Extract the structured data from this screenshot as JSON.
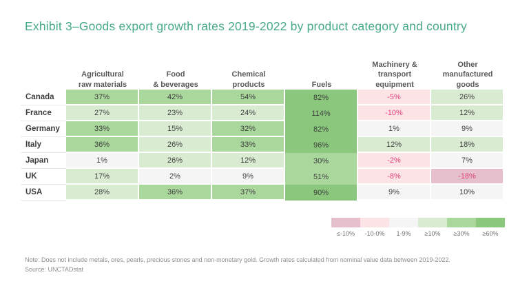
{
  "title": "Exhibit 3–Goods export growth rates 2019-2022 by product category and country",
  "colors": {
    "title": "#46a98b",
    "header_text": "#595959",
    "cell_text": "#3d3d3d",
    "negative_text": "#e0447e",
    "note_text": "#8e8e8e"
  },
  "table": {
    "columns": [
      {
        "key": "agricultural",
        "label": "Agricultural\nraw materials"
      },
      {
        "key": "food",
        "label": "Food\n& beverages"
      },
      {
        "key": "chemical",
        "label": "Chemical\nproducts"
      },
      {
        "key": "fuels",
        "label": "Fuels"
      },
      {
        "key": "machinery",
        "label": "Machinery &\ntransport\nequipment"
      },
      {
        "key": "other",
        "label": "Other\nmanufactured\ngoods"
      }
    ],
    "rows": [
      {
        "country": "Canada",
        "cells": [
          {
            "value": "37%",
            "band": "ge30"
          },
          {
            "value": "42%",
            "band": "ge30"
          },
          {
            "value": "54%",
            "band": "ge30"
          },
          {
            "value": "82%",
            "band": "ge60"
          },
          {
            "value": "-5%",
            "band": "n10-0"
          },
          {
            "value": "26%",
            "band": "ge10"
          }
        ]
      },
      {
        "country": "France",
        "cells": [
          {
            "value": "27%",
            "band": "ge10"
          },
          {
            "value": "23%",
            "band": "ge10"
          },
          {
            "value": "24%",
            "band": "ge10"
          },
          {
            "value": "114%",
            "band": "ge60"
          },
          {
            "value": "-10%",
            "band": "n10-0"
          },
          {
            "value": "12%",
            "band": "ge10"
          }
        ]
      },
      {
        "country": "Germany",
        "cells": [
          {
            "value": "33%",
            "band": "ge30"
          },
          {
            "value": "15%",
            "band": "ge10"
          },
          {
            "value": "32%",
            "band": "ge30"
          },
          {
            "value": "82%",
            "band": "ge60"
          },
          {
            "value": "1%",
            "band": "p1-9"
          },
          {
            "value": "9%",
            "band": "p1-9"
          }
        ]
      },
      {
        "country": "Italy",
        "cells": [
          {
            "value": "36%",
            "band": "ge30"
          },
          {
            "value": "26%",
            "band": "ge10"
          },
          {
            "value": "33%",
            "band": "ge30"
          },
          {
            "value": "96%",
            "band": "ge60"
          },
          {
            "value": "12%",
            "band": "ge10"
          },
          {
            "value": "18%",
            "band": "ge10"
          }
        ]
      },
      {
        "country": "Japan",
        "cells": [
          {
            "value": "1%",
            "band": "p1-9"
          },
          {
            "value": "26%",
            "band": "ge10"
          },
          {
            "value": "12%",
            "band": "ge10"
          },
          {
            "value": "30%",
            "band": "ge30"
          },
          {
            "value": "-2%",
            "band": "n10-0"
          },
          {
            "value": "7%",
            "band": "p1-9"
          }
        ]
      },
      {
        "country": "UK",
        "cells": [
          {
            "value": "17%",
            "band": "ge10"
          },
          {
            "value": "2%",
            "band": "p1-9"
          },
          {
            "value": "9%",
            "band": "p1-9"
          },
          {
            "value": "51%",
            "band": "ge30"
          },
          {
            "value": "-8%",
            "band": "n10-0"
          },
          {
            "value": "-18%",
            "band": "le-10"
          }
        ]
      },
      {
        "country": "USA",
        "cells": [
          {
            "value": "28%",
            "band": "ge10"
          },
          {
            "value": "36%",
            "band": "ge30"
          },
          {
            "value": "37%",
            "band": "ge30"
          },
          {
            "value": "90%",
            "band": "ge60"
          },
          {
            "value": "9%",
            "band": "p1-9"
          },
          {
            "value": "10%",
            "band": "p1-9"
          }
        ]
      }
    ]
  },
  "legend": {
    "bands": [
      {
        "key": "le-10",
        "label": "≤-10%",
        "color": "#e5bfcc"
      },
      {
        "key": "n10-0",
        "label": "-10-0%",
        "color": "#fce3e5"
      },
      {
        "key": "p1-9",
        "label": "1-9%",
        "color": "#f5f5f6"
      },
      {
        "key": "ge10",
        "label": "≥10%",
        "color": "#d9ecd2"
      },
      {
        "key": "ge30",
        "label": "≥30%",
        "color": "#a9d79c"
      },
      {
        "key": "ge60",
        "label": "≥60%",
        "color": "#8bc87e"
      }
    ]
  },
  "notes": {
    "note": "Note: Does not include metals, ores, pearls, precious stones and non-monetary gold. Growth rates calculated from nominal value data between 2019-2022.",
    "source": "Source: UNCTADstat"
  },
  "chart_data": {
    "type": "heatmap",
    "title": "Exhibit 3–Goods export growth rates 2019-2022 by product category and country",
    "columns": [
      "Agricultural raw materials",
      "Food & beverages",
      "Chemical products",
      "Fuels",
      "Machinery & transport equipment",
      "Other manufactured goods"
    ],
    "rows": [
      "Canada",
      "France",
      "Germany",
      "Italy",
      "Japan",
      "UK",
      "USA"
    ],
    "values_percent": [
      [
        37,
        42,
        54,
        82,
        -5,
        26
      ],
      [
        27,
        23,
        24,
        114,
        -10,
        12
      ],
      [
        33,
        15,
        32,
        82,
        1,
        9
      ],
      [
        36,
        26,
        33,
        96,
        12,
        18
      ],
      [
        1,
        26,
        12,
        30,
        -2,
        7
      ],
      [
        17,
        2,
        9,
        51,
        -8,
        -18
      ],
      [
        28,
        36,
        37,
        90,
        9,
        10
      ]
    ],
    "legend_bands": [
      "≤-10%",
      "-10-0%",
      "1-9%",
      "≥10%",
      "≥30%",
      "≥60%"
    ],
    "legend_position": "bottom-right",
    "grid": false
  }
}
